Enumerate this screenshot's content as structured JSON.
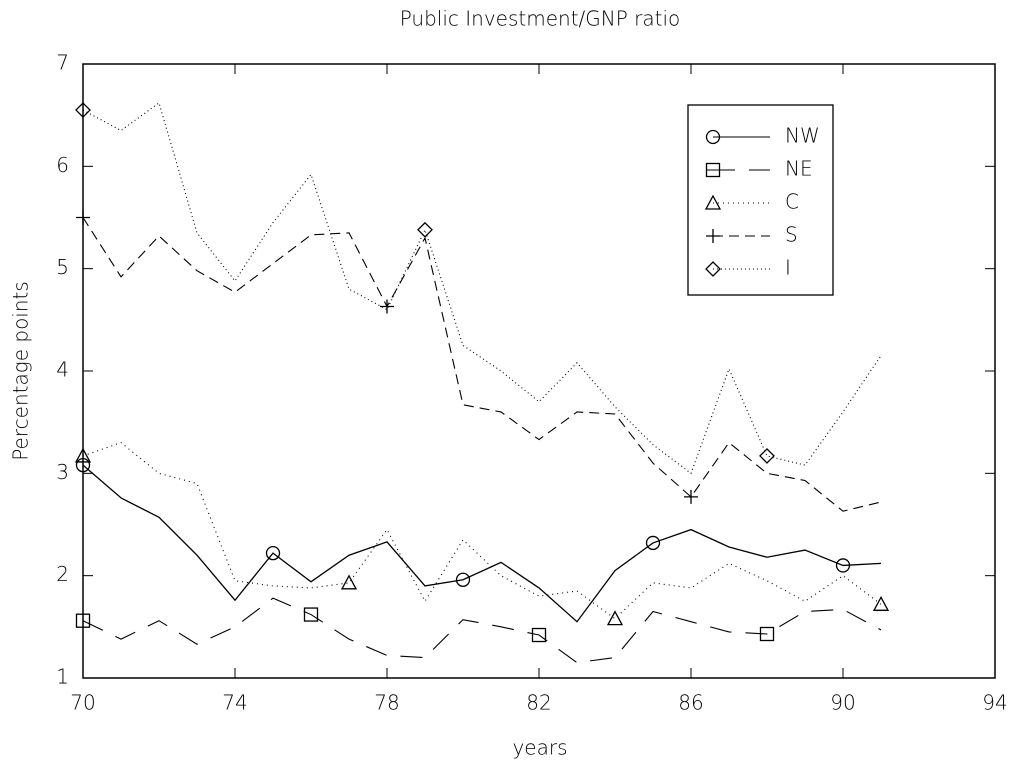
{
  "chart_data": {
    "type": "line",
    "title": "Public Investment/GNP ratio",
    "x_label": "years",
    "y_label": "Percentage points",
    "x": [
      70,
      71,
      72,
      73,
      74,
      75,
      76,
      77,
      78,
      79,
      80,
      81,
      82,
      83,
      84,
      85,
      86,
      87,
      88,
      89,
      90,
      91
    ],
    "xlim": [
      70,
      94
    ],
    "xticks": [
      70,
      74,
      78,
      82,
      86,
      90,
      94
    ],
    "ylim": [
      1,
      7
    ],
    "yticks": [
      1,
      2,
      3,
      4,
      5,
      6,
      7
    ],
    "legend": "upper right",
    "series": [
      {
        "name": "NW",
        "color": "#000000",
        "values": [
          3.08,
          2.76,
          2.57,
          2.2,
          1.76,
          2.22,
          1.94,
          2.2,
          2.33,
          1.9,
          1.96,
          2.13,
          1.88,
          1.55,
          2.05,
          2.32,
          2.45,
          2.28,
          2.18,
          2.25,
          2.1,
          2.12
        ]
      },
      {
        "name": "NE",
        "color": "#000000",
        "values": [
          1.56,
          1.38,
          1.56,
          1.33,
          1.5,
          1.78,
          1.62,
          1.38,
          1.22,
          1.2,
          1.57,
          1.5,
          1.42,
          1.15,
          1.2,
          1.65,
          1.55,
          1.45,
          1.43,
          1.65,
          1.67,
          1.47
        ]
      },
      {
        "name": "C",
        "color": "#000000",
        "values": [
          3.17,
          3.3,
          3.0,
          2.9,
          1.95,
          1.9,
          1.88,
          1.93,
          2.45,
          1.75,
          2.35,
          2.0,
          1.8,
          1.85,
          1.58,
          1.93,
          1.88,
          2.12,
          1.95,
          1.75,
          2.0,
          1.72
        ]
      },
      {
        "name": "S",
        "color": "#000000",
        "values": [
          5.5,
          4.92,
          5.32,
          4.98,
          4.77,
          5.05,
          5.33,
          5.35,
          4.63,
          5.3,
          3.67,
          3.6,
          3.33,
          3.6,
          3.58,
          3.1,
          2.77,
          3.3,
          3.0,
          2.93,
          2.63,
          2.72
        ]
      },
      {
        "name": "I",
        "color": "#000000",
        "values": [
          6.55,
          6.35,
          6.62,
          5.35,
          4.88,
          5.45,
          5.92,
          4.8,
          4.6,
          5.38,
          4.25,
          4.0,
          3.7,
          4.08,
          3.65,
          3.28,
          3.0,
          4.02,
          3.17,
          3.08,
          3.6,
          4.15
        ]
      }
    ]
  }
}
